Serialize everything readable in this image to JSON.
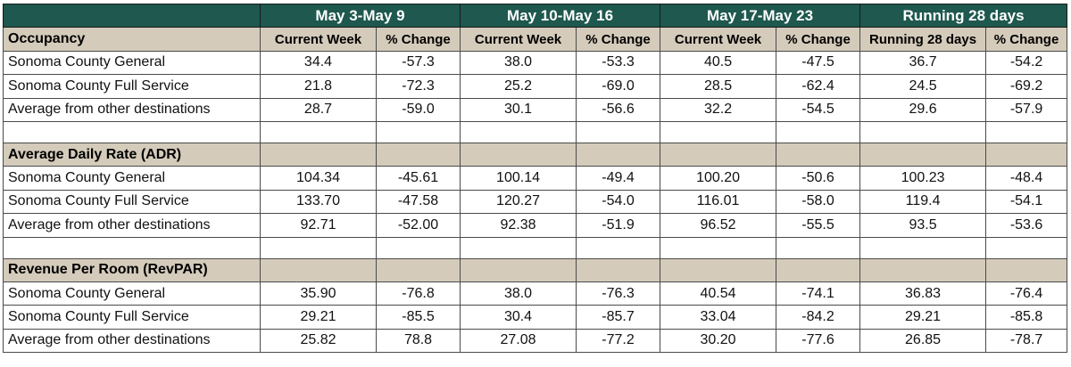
{
  "periods": [
    "May 3-May 9",
    "May 10-May 16",
    "May 17-May 23",
    "Running 28 days"
  ],
  "column_headers": [
    "Current Week",
    "% Change",
    "Current Week",
    "% Change",
    "Current Week",
    "% Change",
    "Running 28 days",
    "% Change"
  ],
  "sections": [
    {
      "title": "Occupancy",
      "rows": [
        {
          "label": "Sonoma County General",
          "values": [
            "34.4",
            "-57.3",
            "38.0",
            "-53.3",
            "40.5",
            "-47.5",
            "36.7",
            "-54.2"
          ]
        },
        {
          "label": "Sonoma County Full Service",
          "values": [
            "21.8",
            "-72.3",
            "25.2",
            "-69.0",
            "28.5",
            "-62.4",
            "24.5",
            "-69.2"
          ]
        },
        {
          "label": "Average from other destinations",
          "values": [
            "28.7",
            "-59.0",
            "30.1",
            "-56.6",
            "32.2",
            "-54.5",
            "29.6",
            "-57.9"
          ]
        }
      ]
    },
    {
      "title": "Average Daily Rate (ADR)",
      "rows": [
        {
          "label": "Sonoma County General",
          "values": [
            "104.34",
            "-45.61",
            "100.14",
            "-49.4",
            "100.20",
            "-50.6",
            "100.23",
            "-48.4"
          ]
        },
        {
          "label": "Sonoma County Full Service",
          "values": [
            "133.70",
            "-47.58",
            "120.27",
            "-54.0",
            "116.01",
            "-58.0",
            "119.4",
            "-54.1"
          ]
        },
        {
          "label": "Average from other destinations",
          "values": [
            "92.71",
            "-52.00",
            "92.38",
            "-51.9",
            "96.52",
            "-55.5",
            "93.5",
            "-53.6"
          ]
        }
      ]
    },
    {
      "title": "Revenue Per Room (RevPAR)",
      "rows": [
        {
          "label": "Sonoma County General",
          "values": [
            "35.90",
            "-76.8",
            "38.0",
            "-76.3",
            "40.54",
            "-74.1",
            "36.83",
            "-76.4"
          ]
        },
        {
          "label": "Sonoma County Full Service",
          "values": [
            "29.21",
            "-85.5",
            "30.4",
            "-85.7",
            "33.04",
            "-84.2",
            "29.21",
            "-85.8"
          ]
        },
        {
          "label": "Average from other destinations",
          "values": [
            "25.82",
            "78.8",
            "27.08",
            "-77.2",
            "30.20",
            "-77.6",
            "26.85",
            "-78.7"
          ]
        }
      ]
    }
  ]
}
